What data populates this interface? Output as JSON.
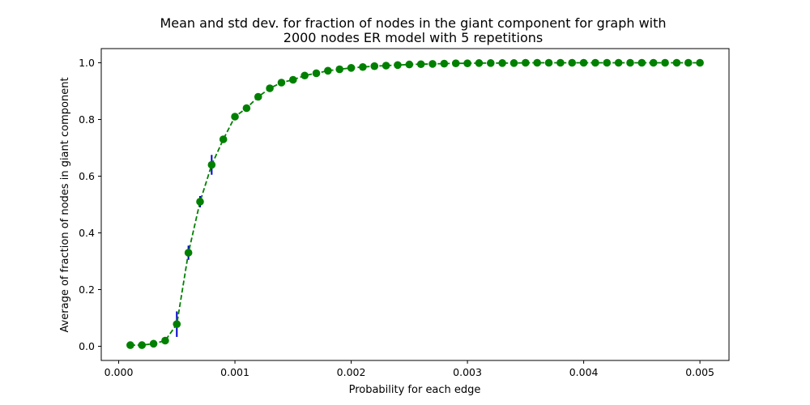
{
  "chart_data": {
    "type": "line",
    "title_line1": "Mean and std dev. for fraction of nodes in the giant component for graph with",
    "title_line2": "2000 nodes ER model with 5 repetitions",
    "xlabel": "Probability for each edge",
    "ylabel": "Average of fraction of nodes in giant component",
    "xlim": [
      -0.00015,
      0.00525
    ],
    "ylim": [
      -0.05,
      1.05
    ],
    "xticks": [
      0.0,
      0.001,
      0.002,
      0.003,
      0.004,
      0.005
    ],
    "xtick_labels": [
      "0.000",
      "0.001",
      "0.002",
      "0.003",
      "0.004",
      "0.005"
    ],
    "yticks": [
      0.0,
      0.2,
      0.4,
      0.6,
      0.8,
      1.0
    ],
    "ytick_labels": [
      "0.0",
      "0.2",
      "0.4",
      "0.6",
      "0.8",
      "1.0"
    ],
    "grid": false,
    "line_color": "#008000",
    "errorbar_color": "#0000cc",
    "series": [
      {
        "x": [
          0.0001,
          0.0002,
          0.0003,
          0.0004,
          0.0005,
          0.0006,
          0.0007,
          0.0008,
          0.0009,
          0.001,
          0.0011,
          0.0012,
          0.0013,
          0.0014,
          0.0015,
          0.0016,
          0.0017,
          0.0018,
          0.0019,
          0.002,
          0.0021,
          0.0022,
          0.0023,
          0.0024,
          0.0025,
          0.0026,
          0.0027,
          0.0028,
          0.0029,
          0.003,
          0.0031,
          0.0032,
          0.0033,
          0.0034,
          0.0035,
          0.0036,
          0.0037,
          0.0038,
          0.0039,
          0.004,
          0.0041,
          0.0042,
          0.0043,
          0.0044,
          0.0045,
          0.0046,
          0.0047,
          0.0048,
          0.0049,
          0.005
        ],
        "y": [
          0.004,
          0.004,
          0.009,
          0.02,
          0.078,
          0.33,
          0.51,
          0.64,
          0.73,
          0.81,
          0.84,
          0.88,
          0.91,
          0.93,
          0.94,
          0.955,
          0.963,
          0.972,
          0.977,
          0.982,
          0.985,
          0.988,
          0.99,
          0.992,
          0.994,
          0.995,
          0.996,
          0.997,
          0.998,
          0.998,
          0.999,
          0.999,
          0.999,
          0.999,
          1.0,
          1.0,
          1.0,
          1.0,
          1.0,
          1.0,
          1.0,
          1.0,
          1.0,
          1.0,
          1.0,
          1.0,
          1.0,
          1.0,
          1.0,
          1.0
        ],
        "std": [
          0.0,
          0.0,
          0.001,
          0.003,
          0.045,
          0.025,
          0.02,
          0.035,
          0.01,
          0.008,
          0.006,
          0.005,
          0.004,
          0.003,
          0.003,
          0.002,
          0.002,
          0.002,
          0.001,
          0.001,
          0.001,
          0.001,
          0.001,
          0.001,
          0.0,
          0.0,
          0.0,
          0.0,
          0.0,
          0.0,
          0.0,
          0.0,
          0.0,
          0.0,
          0.0,
          0.0,
          0.0,
          0.0,
          0.0,
          0.0,
          0.0,
          0.0,
          0.0,
          0.0,
          0.0,
          0.0,
          0.0,
          0.0,
          0.0,
          0.0
        ]
      }
    ]
  }
}
